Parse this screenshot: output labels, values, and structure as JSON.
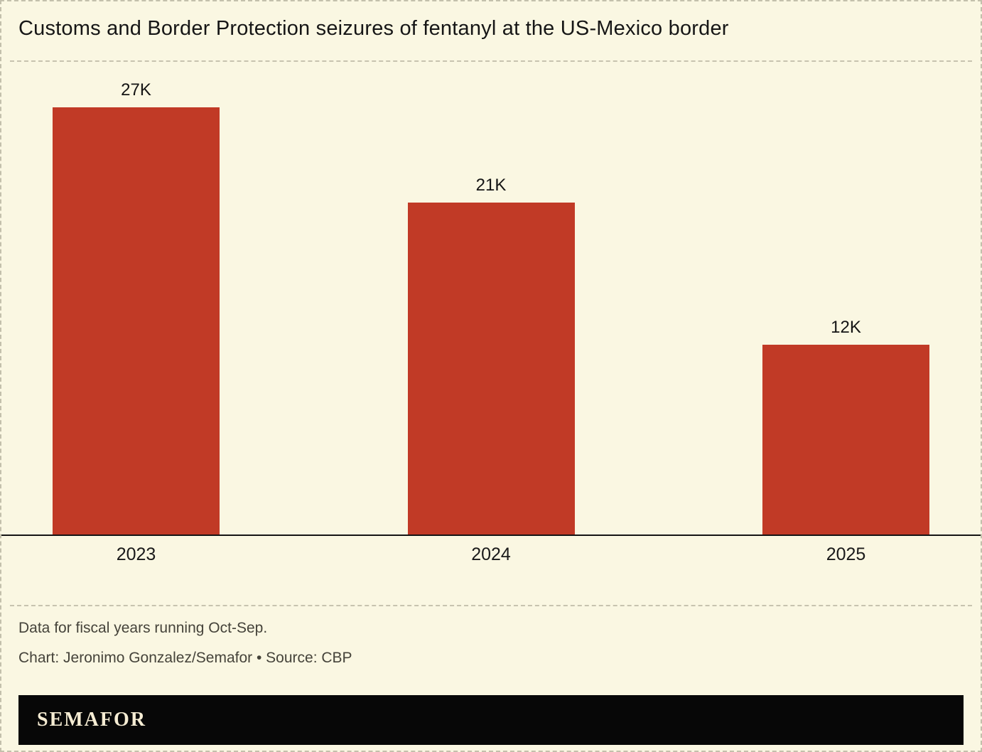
{
  "chart_data": {
    "type": "bar",
    "title": "Customs and Border Protection seizures of fentanyl at the US-Mexico border",
    "categories": [
      "2023",
      "2024",
      "2025"
    ],
    "values": [
      27,
      21,
      12
    ],
    "value_labels": [
      "27K",
      "21K",
      "12K"
    ],
    "unit": "K",
    "xlabel": "",
    "ylabel": "",
    "ylim": [
      0,
      27
    ],
    "grid": false,
    "legend": false,
    "bar_color": "#c13a26"
  },
  "notes": {
    "line1": "Data for fiscal years running Oct-Sep.",
    "line2": "Chart: Jeronimo Gonzalez/Semafor • Source: CBP"
  },
  "footer": {
    "brand": "SEMAFOR"
  },
  "colors": {
    "background": "#faf7e2",
    "bar": "#c13a26",
    "axis": "#141414",
    "footer_background": "#070707",
    "brand_text": "#f5ecd3"
  }
}
